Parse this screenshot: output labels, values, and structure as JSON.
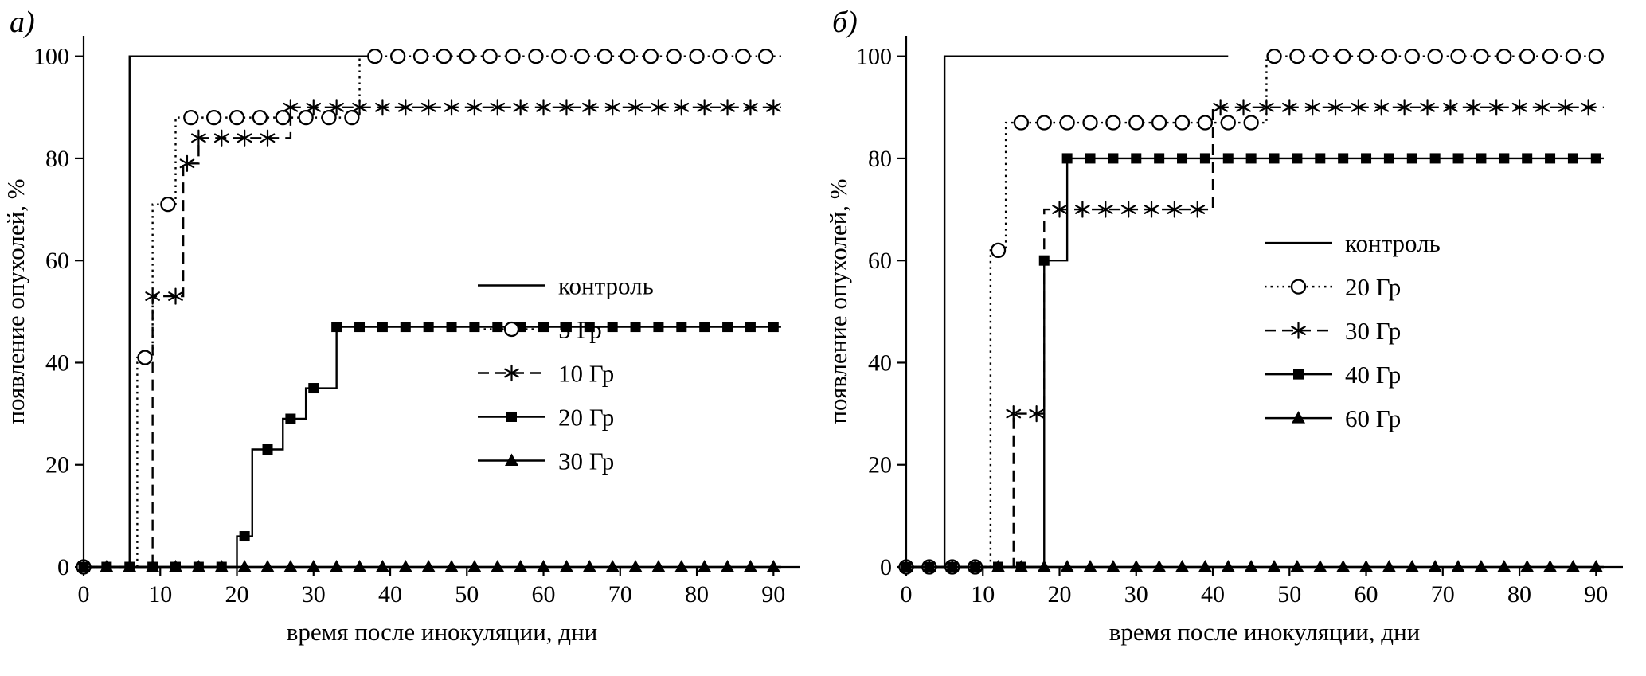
{
  "figure": {
    "background": "#ffffff",
    "line_color": "#000000"
  },
  "chart_data": [
    {
      "type": "line",
      "panel_label": "а)",
      "xlabel": "время после инокуляции, дни",
      "ylabel": "появление опухолей, %",
      "xlim": [
        0,
        93.5
      ],
      "ylim": [
        0,
        104
      ],
      "xticks": [
        0,
        10,
        20,
        30,
        40,
        50,
        60,
        70,
        80,
        90
      ],
      "yticks": [
        0,
        20,
        40,
        60,
        80,
        100
      ],
      "grid": false,
      "legend_position": "inside-right",
      "legend_fraction": {
        "x": 0.55,
        "y": 0.47
      },
      "series": [
        {
          "name": "контроль",
          "line": "solid",
          "marker": "none",
          "step": true,
          "points": [
            [
              0,
              0
            ],
            [
              6,
              0
            ],
            [
              6,
              100
            ],
            [
              37,
              100
            ]
          ]
        },
        {
          "name": "5 Гр",
          "line": "dotted",
          "marker": "circle",
          "step": true,
          "points": [
            [
              0,
              0
            ],
            [
              7,
              0
            ],
            [
              7,
              41
            ],
            [
              9,
              41
            ],
            [
              9,
              71
            ],
            [
              12,
              71
            ],
            [
              12,
              88
            ],
            [
              36,
              88
            ],
            [
              36,
              100
            ],
            [
              91,
              100
            ]
          ],
          "marker_start": 8,
          "marker_interval": 3,
          "extra_marker_xs": [
            0
          ]
        },
        {
          "name": "10 Гр",
          "line": "dashed",
          "marker": "asterisk",
          "step": true,
          "points": [
            [
              0,
              0
            ],
            [
              9,
              0
            ],
            [
              9,
              53
            ],
            [
              13,
              53
            ],
            [
              13,
              79
            ],
            [
              15,
              79
            ],
            [
              15,
              84
            ],
            [
              27,
              84
            ],
            [
              27,
              90
            ],
            [
              91,
              90
            ]
          ],
          "marker_start": 9,
          "marker_interval": 3,
          "extra_marker_xs": [
            13.5
          ]
        },
        {
          "name": "20 Гр",
          "line": "solid",
          "marker": "square",
          "step": true,
          "points": [
            [
              0,
              0
            ],
            [
              20,
              0
            ],
            [
              20,
              6
            ],
            [
              22,
              6
            ],
            [
              22,
              23
            ],
            [
              26,
              23
            ],
            [
              26,
              29
            ],
            [
              29,
              29
            ],
            [
              29,
              35
            ],
            [
              33,
              35
            ],
            [
              33,
              47
            ],
            [
              91,
              47
            ]
          ],
          "marker_start": 0,
          "marker_interval": 3
        },
        {
          "name": "30 Гр",
          "line": "solid",
          "marker": "triangle",
          "step": true,
          "points": [
            [
              0,
              0
            ],
            [
              91,
              0
            ]
          ],
          "marker_start": 0,
          "marker_interval": 3
        }
      ]
    },
    {
      "type": "line",
      "panel_label": "б)",
      "xlabel": "время после инокуляции, дни",
      "ylabel": "появление опухолей, %",
      "xlim": [
        0,
        93.5
      ],
      "ylim": [
        0,
        104
      ],
      "xticks": [
        0,
        10,
        20,
        30,
        40,
        50,
        60,
        70,
        80,
        90
      ],
      "yticks": [
        0,
        20,
        40,
        60,
        80,
        100
      ],
      "grid": false,
      "legend_position": "inside-right",
      "legend_fraction": {
        "x": 0.5,
        "y": 0.39
      },
      "series": [
        {
          "name": "контроль",
          "line": "solid",
          "marker": "none",
          "step": true,
          "points": [
            [
              0,
              0
            ],
            [
              5,
              0
            ],
            [
              5,
              100
            ],
            [
              42,
              100
            ]
          ]
        },
        {
          "name": "20 Гр",
          "line": "dotted",
          "marker": "circle",
          "step": true,
          "points": [
            [
              0,
              0
            ],
            [
              11,
              0
            ],
            [
              11,
              62
            ],
            [
              13,
              62
            ],
            [
              13,
              87
            ],
            [
              47,
              87
            ],
            [
              47,
              100
            ],
            [
              91,
              100
            ]
          ],
          "marker_start": 0,
          "marker_interval": 3
        },
        {
          "name": "30 Гр",
          "line": "dashed",
          "marker": "asterisk",
          "step": true,
          "points": [
            [
              0,
              0
            ],
            [
              14,
              0
            ],
            [
              14,
              30
            ],
            [
              18,
              30
            ],
            [
              18,
              70
            ],
            [
              40,
              70
            ],
            [
              40,
              90
            ],
            [
              91,
              90
            ]
          ],
          "marker_start": 14,
          "marker_interval": 3
        },
        {
          "name": "40 Гр",
          "line": "solid",
          "marker": "square",
          "step": true,
          "points": [
            [
              0,
              0
            ],
            [
              18,
              0
            ],
            [
              18,
              60
            ],
            [
              21,
              60
            ],
            [
              21,
              80
            ],
            [
              91,
              80
            ]
          ],
          "marker_start": 0,
          "marker_interval": 3
        },
        {
          "name": "60 Гр",
          "line": "solid",
          "marker": "triangle",
          "step": true,
          "points": [
            [
              0,
              0
            ],
            [
              91,
              0
            ]
          ],
          "marker_start": 0,
          "marker_interval": 3
        }
      ]
    }
  ]
}
